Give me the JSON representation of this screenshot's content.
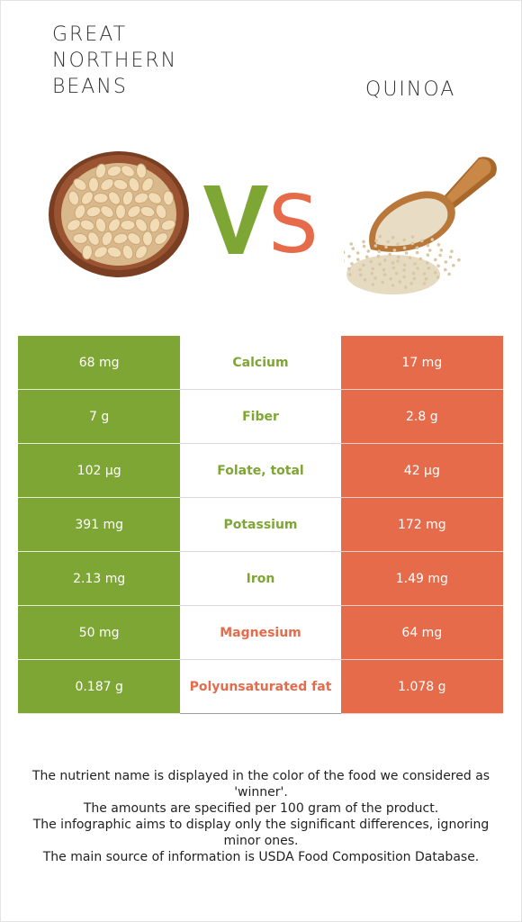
{
  "food_left": {
    "name": "Great Northern Beans",
    "color": "#7ea634"
  },
  "food_right": {
    "name": "Quinoa",
    "color": "#e56b4b"
  },
  "vs_text": "VS",
  "rows": [
    {
      "left": "68 mg",
      "nutrient": "Calcium",
      "right": "17 mg",
      "winner": "left"
    },
    {
      "left": "7 g",
      "nutrient": "Fiber",
      "right": "2.8 g",
      "winner": "left"
    },
    {
      "left": "102 µg",
      "nutrient": "Folate, total",
      "right": "42 µg",
      "winner": "left"
    },
    {
      "left": "391 mg",
      "nutrient": "Potassium",
      "right": "172 mg",
      "winner": "left"
    },
    {
      "left": "2.13 mg",
      "nutrient": "Iron",
      "right": "1.49 mg",
      "winner": "left"
    },
    {
      "left": "50 mg",
      "nutrient": "Magnesium",
      "right": "64 mg",
      "winner": "right"
    },
    {
      "left": "0.187 g",
      "nutrient": "Polyunsaturated fat",
      "right": "1.078 g",
      "winner": "right"
    }
  ],
  "footnotes": [
    "The nutrient name is displayed in the color of the food we considered as 'winner'.",
    "The amounts are specified per 100 gram of the product.",
    "The infographic aims to display only the significant differences, ignoring minor ones.",
    "The main source of information is USDA Food Composition Database."
  ]
}
